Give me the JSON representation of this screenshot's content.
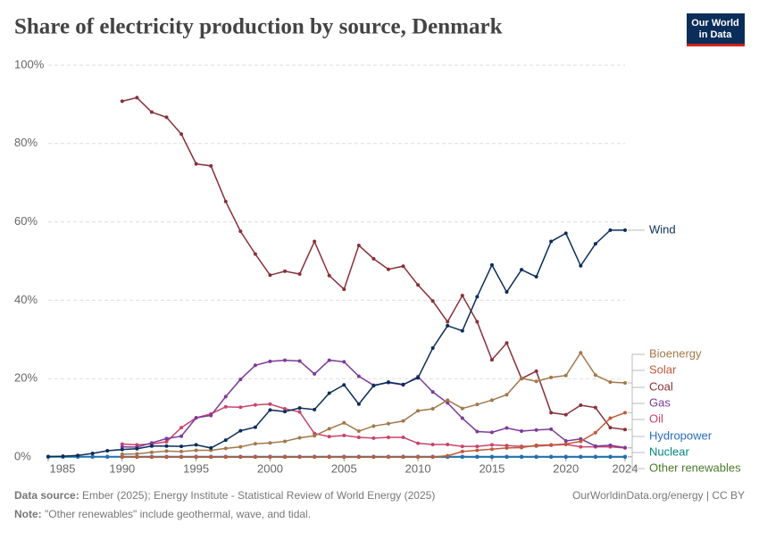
{
  "chart_data": {
    "type": "line",
    "title": "Share of electricity production by source, Denmark",
    "logo": [
      "Our World",
      "in Data"
    ],
    "source_label": "Data source:",
    "source": "Ember (2025); Energy Institute - Statistical Review of World Energy (2025)",
    "url": "OurWorldinData.org/energy | CC BY",
    "note_label": "Note:",
    "note": "\"Other renewables\" include geothermal, wave, and tidal.",
    "x": [
      1985,
      1986,
      1987,
      1988,
      1989,
      1990,
      1991,
      1992,
      1993,
      1994,
      1995,
      1996,
      1997,
      1998,
      1999,
      2000,
      2001,
      2002,
      2003,
      2004,
      2005,
      2006,
      2007,
      2008,
      2009,
      2010,
      2011,
      2012,
      2013,
      2014,
      2015,
      2016,
      2017,
      2018,
      2019,
      2020,
      2021,
      2022,
      2023,
      2024
    ],
    "xlim": [
      1985,
      2024
    ],
    "xticks": [
      1985,
      1990,
      1995,
      2000,
      2005,
      2010,
      2015,
      2020,
      2024
    ],
    "ylim": [
      0,
      100
    ],
    "yticks": [
      {
        "value": 0,
        "label": "0%"
      },
      {
        "value": 20,
        "label": "20%"
      },
      {
        "value": 40,
        "label": "40%"
      },
      {
        "value": 60,
        "label": "60%"
      },
      {
        "value": 80,
        "label": "80%"
      },
      {
        "value": 100,
        "label": "100%"
      }
    ],
    "grid": true,
    "series": [
      {
        "name": "Wind",
        "color": "#0b2d5a",
        "values": [
          0.1,
          0.2,
          0.4,
          0.9,
          1.6,
          1.9,
          2.1,
          2.8,
          2.8,
          2.7,
          3.1,
          2.3,
          4.3,
          6.7,
          7.6,
          12.0,
          11.6,
          12.5,
          12.1,
          16.3,
          18.4,
          13.5,
          18.2,
          19.1,
          18.5,
          20.2,
          27.8,
          33.5,
          32.2,
          40.9,
          49.0,
          42.1,
          47.8,
          46.0,
          55.0,
          57.1,
          48.8,
          54.4,
          57.9,
          57.9
        ]
      },
      {
        "name": "Bioenergy",
        "color": "#a2784a",
        "values": [
          null,
          null,
          null,
          null,
          null,
          0.7,
          0.8,
          1.2,
          1.5,
          1.4,
          1.7,
          1.7,
          2.2,
          2.6,
          3.4,
          3.6,
          4.0,
          4.9,
          5.4,
          7.2,
          8.7,
          6.6,
          7.9,
          8.5,
          9.2,
          11.8,
          12.3,
          14.5,
          12.4,
          13.4,
          14.5,
          15.9,
          20.1,
          19.3,
          20.3,
          20.8,
          26.6,
          20.9,
          19.1,
          18.9
        ]
      },
      {
        "name": "Solar",
        "color": "#c05a3a",
        "values": [
          null,
          null,
          null,
          null,
          null,
          0,
          0,
          0,
          0,
          0,
          0,
          0,
          0,
          0,
          0,
          0,
          0,
          0,
          0,
          0,
          0,
          0,
          0,
          0,
          0,
          0,
          0,
          0.3,
          1.4,
          1.7,
          2.0,
          2.3,
          2.4,
          3.0,
          3.1,
          3.3,
          4.0,
          6.2,
          9.9,
          11.3
        ]
      },
      {
        "name": "Coal",
        "color": "#883039",
        "values": [
          null,
          null,
          null,
          null,
          null,
          90.8,
          91.7,
          88.0,
          86.7,
          82.4,
          74.8,
          74.3,
          65.2,
          57.6,
          51.8,
          46.4,
          47.4,
          46.7,
          55.0,
          46.3,
          42.8,
          54.0,
          50.6,
          47.9,
          48.7,
          43.9,
          39.8,
          34.5,
          41.2,
          34.5,
          24.8,
          29.1,
          20.0,
          21.9,
          11.3,
          10.8,
          13.2,
          12.6,
          7.5,
          7.0
        ]
      },
      {
        "name": "Gas",
        "color": "#7d3a9a",
        "values": [
          null,
          null,
          null,
          null,
          null,
          2.6,
          2.5,
          3.6,
          4.7,
          5.3,
          10.0,
          10.6,
          15.4,
          19.8,
          23.4,
          24.4,
          24.7,
          24.5,
          21.2,
          24.7,
          24.3,
          20.6,
          18.3,
          19.0,
          18.4,
          20.5,
          16.6,
          13.8,
          9.9,
          6.5,
          6.3,
          7.4,
          6.6,
          6.9,
          7.1,
          4.1,
          4.6,
          2.8,
          3.0,
          2.4
        ]
      },
      {
        "name": "Oil",
        "color": "#c8446a",
        "values": [
          null,
          null,
          null,
          null,
          null,
          3.3,
          3.1,
          3.3,
          3.9,
          7.5,
          10.0,
          11.0,
          12.8,
          12.7,
          13.3,
          13.5,
          12.3,
          11.5,
          6.0,
          5.2,
          5.5,
          5.0,
          4.8,
          5.0,
          5.0,
          3.5,
          3.2,
          3.2,
          2.7,
          2.7,
          3.1,
          2.9,
          2.7,
          2.8,
          3.0,
          3.2,
          2.6,
          2.6,
          2.6,
          2.3
        ]
      },
      {
        "name": "Hydropower",
        "color": "#286bbb",
        "values": [
          0.1,
          0.1,
          0.1,
          0.1,
          0.1,
          0.1,
          0.1,
          0.1,
          0.1,
          0.1,
          0.1,
          0.1,
          0.1,
          0.1,
          0.1,
          0.1,
          0.1,
          0.1,
          0.1,
          0.1,
          0.1,
          0.1,
          0.1,
          0.1,
          0.1,
          0.1,
          0.1,
          0.1,
          0.1,
          0.1,
          0.1,
          0.1,
          0.1,
          0.1,
          0.1,
          0.1,
          0.1,
          0.1,
          0.1,
          0.1
        ]
      },
      {
        "name": "Nuclear",
        "color": "#00847e",
        "values": [
          0,
          0,
          0,
          0,
          0,
          0,
          0,
          0,
          0,
          0,
          0,
          0,
          0,
          0,
          0,
          0,
          0,
          0,
          0,
          0,
          0,
          0,
          0,
          0,
          0,
          0,
          0,
          0,
          0,
          0,
          0,
          0,
          0,
          0,
          0,
          0,
          0,
          0,
          0,
          0
        ]
      },
      {
        "name": "Other renewables",
        "color": "#4c7a2a",
        "values": [
          null,
          null,
          null,
          null,
          null,
          0,
          0,
          0,
          0,
          0,
          0,
          0,
          0,
          0,
          0,
          0,
          0,
          0,
          0,
          0,
          0,
          0,
          0,
          0,
          0,
          0,
          0,
          0,
          0,
          0,
          0,
          0,
          0,
          0,
          0,
          0,
          0,
          0,
          0,
          0
        ]
      }
    ]
  }
}
